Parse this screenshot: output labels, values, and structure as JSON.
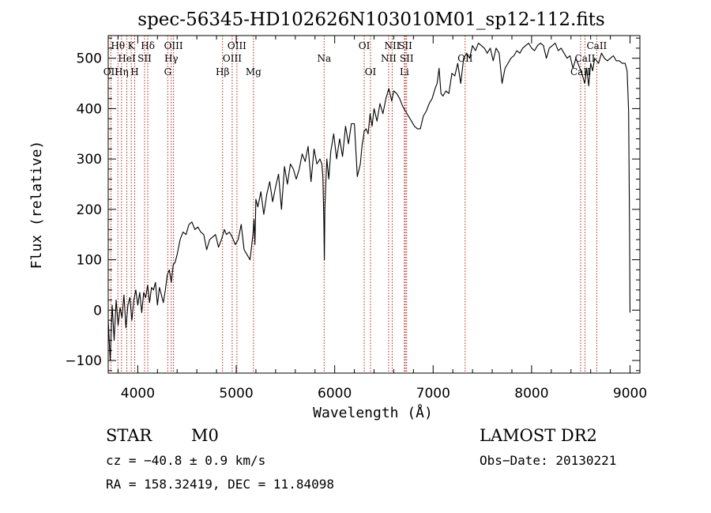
{
  "chart_data": {
    "type": "line",
    "title": "spec-56345-HD102626N103010M01_sp12-112.fits",
    "xlabel": "Wavelength (Å)",
    "ylabel": "Flux (relative)",
    "xlim": [
      3700,
      9100
    ],
    "ylim": [
      -125,
      545
    ],
    "xticks": [
      4000,
      5000,
      6000,
      7000,
      8000,
      9000
    ],
    "yticks": [
      -100,
      0,
      100,
      200,
      300,
      400,
      500
    ],
    "grid": false,
    "series": [
      {
        "color": "#000000",
        "x": [
          3700,
          3720,
          3740,
          3760,
          3780,
          3800,
          3820,
          3840,
          3860,
          3880,
          3900,
          3920,
          3940,
          3960,
          3980,
          4000,
          4020,
          4040,
          4060,
          4080,
          4100,
          4120,
          4140,
          4160,
          4180,
          4200,
          4220,
          4240,
          4260,
          4280,
          4300,
          4320,
          4340,
          4360,
          4380,
          4400,
          4430,
          4460,
          4490,
          4520,
          4550,
          4580,
          4610,
          4640,
          4670,
          4700,
          4730,
          4760,
          4790,
          4820,
          4850,
          4880,
          4900,
          4930,
          4960,
          4990,
          5020,
          5050,
          5080,
          5110,
          5140,
          5170,
          5180,
          5190,
          5200,
          5220,
          5250,
          5280,
          5310,
          5340,
          5370,
          5400,
          5430,
          5460,
          5490,
          5520,
          5550,
          5580,
          5610,
          5640,
          5670,
          5700,
          5730,
          5760,
          5790,
          5820,
          5850,
          5870,
          5880,
          5890,
          5895,
          5900,
          5910,
          5920,
          5940,
          5960,
          5990,
          6020,
          6050,
          6080,
          6110,
          6140,
          6170,
          6200,
          6230,
          6260,
          6280,
          6290,
          6300,
          6320,
          6340,
          6360,
          6380,
          6400,
          6430,
          6460,
          6490,
          6520,
          6550,
          6580,
          6600,
          6630,
          6660,
          6690,
          6720,
          6750,
          6780,
          6810,
          6840,
          6870,
          6900,
          6930,
          6960,
          6990,
          7020,
          7040,
          7060,
          7080,
          7100,
          7130,
          7160,
          7190,
          7220,
          7250,
          7280,
          7310,
          7340,
          7370,
          7400,
          7430,
          7460,
          7490,
          7520,
          7550,
          7580,
          7610,
          7640,
          7670,
          7700,
          7730,
          7760,
          7790,
          7820,
          7850,
          7880,
          7910,
          7940,
          7970,
          8000,
          8030,
          8060,
          8090,
          8120,
          8150,
          8180,
          8210,
          8240,
          8270,
          8300,
          8330,
          8360,
          8390,
          8420,
          8450,
          8480,
          8510,
          8540,
          8560,
          8580,
          8600,
          8620,
          8640,
          8660,
          8680,
          8710,
          8740,
          8770,
          8800,
          8830,
          8860,
          8890,
          8920,
          8950,
          8970,
          8985,
          8995,
          9000
        ],
        "y": [
          -20,
          -100,
          10,
          -60,
          20,
          -30,
          5,
          -15,
          30,
          -35,
          10,
          25,
          -20,
          20,
          40,
          10,
          35,
          -5,
          35,
          25,
          50,
          15,
          45,
          40,
          55,
          10,
          45,
          30,
          15,
          40,
          70,
          80,
          55,
          90,
          95,
          110,
          140,
          155,
          150,
          170,
          175,
          160,
          165,
          155,
          150,
          120,
          140,
          145,
          150,
          125,
          140,
          160,
          150,
          155,
          145,
          130,
          140,
          170,
          120,
          110,
          100,
          150,
          180,
          130,
          220,
          205,
          235,
          190,
          230,
          255,
          215,
          245,
          270,
          200,
          285,
          250,
          290,
          280,
          260,
          280,
          310,
          295,
          325,
          255,
          320,
          290,
          300,
          290,
          265,
          180,
          100,
          200,
          250,
          300,
          260,
          315,
          350,
          300,
          340,
          305,
          365,
          330,
          370,
          370,
          265,
          290,
          330,
          340,
          355,
          360,
          350,
          390,
          365,
          400,
          375,
          410,
          390,
          420,
          440,
          415,
          435,
          430,
          420,
          405,
          395,
          385,
          375,
          365,
          360,
          360,
          385,
          395,
          410,
          420,
          440,
          450,
          480,
          430,
          425,
          435,
          430,
          470,
          465,
          490,
          450,
          500,
          510,
          500,
          525,
          515,
          530,
          525,
          520,
          510,
          520,
          495,
          520,
          510,
          450,
          480,
          490,
          500,
          505,
          515,
          510,
          520,
          525,
          530,
          520,
          515,
          525,
          530,
          525,
          500,
          520,
          525,
          530,
          515,
          520,
          510,
          500,
          505,
          480,
          500,
          485,
          470,
          450,
          480,
          445,
          490,
          475,
          500,
          495,
          490,
          510,
          500,
          495,
          500,
          505,
          495,
          495,
          490,
          490,
          475,
          395,
          160,
          -5
        ]
      }
    ],
    "spectral_lines": [
      {
        "label": "Hθ",
        "x": 3798,
        "row": 1
      },
      {
        "label": "OII",
        "x": 3727,
        "row": 3
      },
      {
        "label": "Hη",
        "x": 3835,
        "row": 3
      },
      {
        "label": "HeI",
        "x": 3889,
        "row": 2
      },
      {
        "label": "K",
        "x": 3934,
        "row": 1
      },
      {
        "label": "SII",
        "x": 4069,
        "row": 2
      },
      {
        "label": "H",
        "x": 3969,
        "row": 3
      },
      {
        "label": "Hδ",
        "x": 4102,
        "row": 1
      },
      {
        "label": "OIII",
        "x": 4363,
        "row": 1
      },
      {
        "label": "Hγ",
        "x": 4340,
        "row": 2
      },
      {
        "label": "G",
        "x": 4305,
        "row": 3
      },
      {
        "label": "Hβ",
        "x": 4861,
        "row": 3
      },
      {
        "label": "OIII",
        "x": 5007,
        "row": 1
      },
      {
        "label": "OIII",
        "x": 4959,
        "row": 2
      },
      {
        "label": "Mg",
        "x": 5175,
        "row": 3
      },
      {
        "label": "Na",
        "x": 5893,
        "row": 2
      },
      {
        "label": "OI",
        "x": 6300,
        "row": 1
      },
      {
        "label": "OI",
        "x": 6364,
        "row": 3
      },
      {
        "label": "NII",
        "x": 6584,
        "row": 1
      },
      {
        "label": "NII",
        "x": 6548,
        "row": 2
      },
      {
        "label": "SII",
        "x": 6717,
        "row": 1
      },
      {
        "label": "SII",
        "x": 6731,
        "row": 2
      },
      {
        "label": "Li",
        "x": 6708,
        "row": 3
      },
      {
        "label": "OII",
        "x": 7325,
        "row": 2
      },
      {
        "label": "CaII",
        "x": 8662,
        "row": 1
      },
      {
        "label": "CaII",
        "x": 8542,
        "row": 2
      },
      {
        "label": "CaII",
        "x": 8498,
        "row": 3
      }
    ]
  },
  "info": {
    "class": "STAR",
    "subclass": "M0",
    "survey": "LAMOST DR2",
    "cz": "cz = −40.8 ± 0.9 km/s",
    "obs_date": "Obs−Date: 20130221",
    "coords": "RA = 158.32419, DEC =  11.84098"
  }
}
